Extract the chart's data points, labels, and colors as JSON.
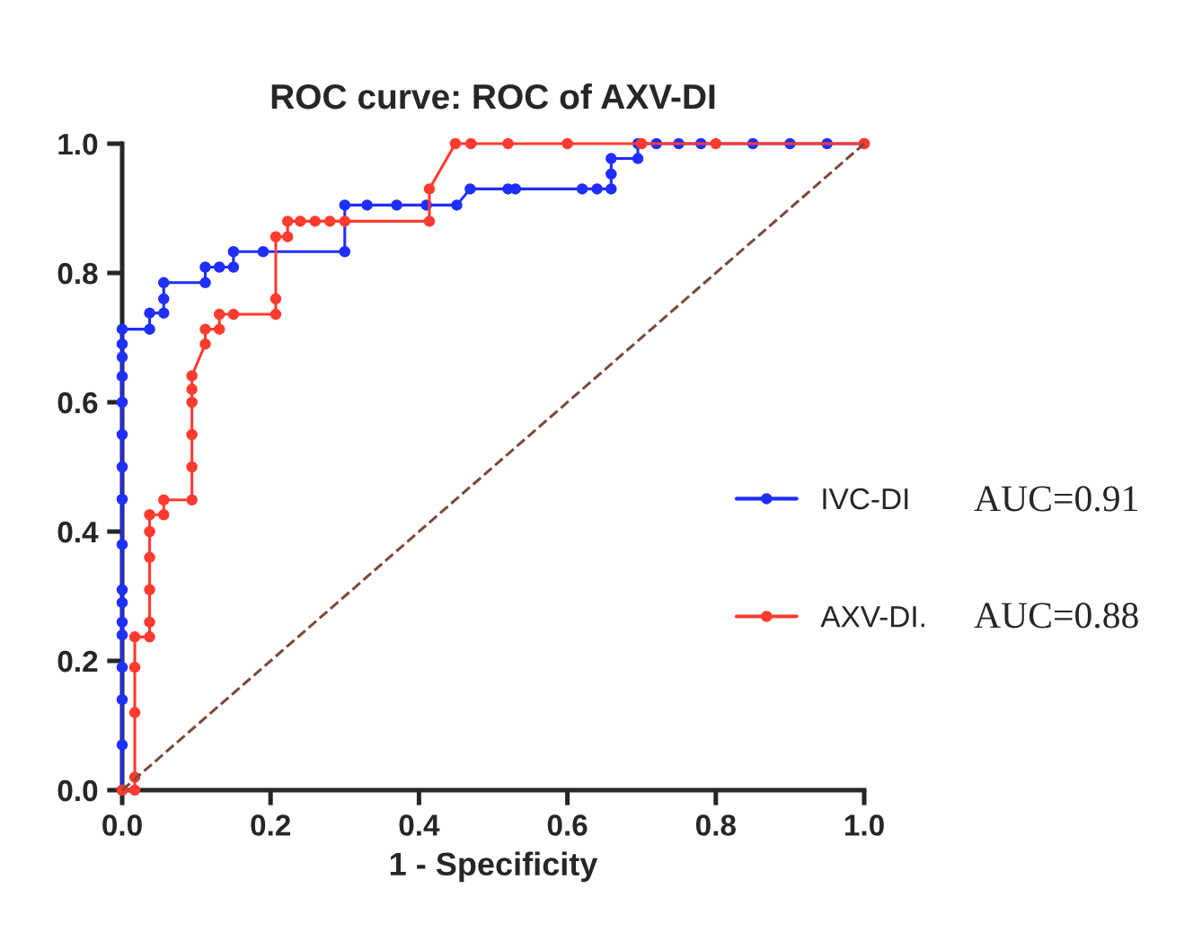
{
  "chart_data": {
    "type": "line",
    "title": "ROC curve: ROC of AXV-DI",
    "xlabel": "1 - Specificity",
    "xlim": [
      0,
      1.0
    ],
    "ylim": [
      0,
      1.0
    ],
    "xticks": [
      "0.0",
      0.2,
      0.4,
      0.6,
      0.8,
      "1.0"
    ],
    "yticks": [
      "0.0",
      0.2,
      0.4,
      0.6,
      0.8,
      "1.0"
    ],
    "grid": false,
    "legend": "right",
    "marker": "circle",
    "series": [
      {
        "name": "IVC-DI",
        "color": "#1f2fff",
        "x": [
          0,
          0,
          0,
          0,
          0,
          0,
          0,
          0,
          0,
          0,
          0,
          0,
          0,
          0,
          0,
          0,
          0,
          0.037,
          0.037,
          0.056,
          0.056,
          0.056,
          0.112,
          0.112,
          0.131,
          0.15,
          0.15,
          0.19,
          0.3,
          0.3,
          0.33,
          0.37,
          0.41,
          0.451,
          0.469,
          0.52,
          0.53,
          0.62,
          0.64,
          0.659,
          0.659,
          0.659,
          0.695,
          0.695,
          0.72,
          0.75,
          0.78,
          0.85,
          0.9,
          0.95,
          1.0
        ],
        "values": [
          0,
          0.07,
          0.14,
          0.19,
          0.24,
          0.26,
          0.29,
          0.31,
          0.38,
          0.45,
          0.5,
          0.55,
          0.6,
          0.64,
          0.67,
          0.69,
          0.713,
          0.713,
          0.738,
          0.738,
          0.76,
          0.785,
          0.785,
          0.809,
          0.809,
          0.809,
          0.833,
          0.833,
          0.833,
          0.905,
          0.905,
          0.905,
          0.905,
          0.905,
          0.93,
          0.93,
          0.93,
          0.93,
          0.93,
          0.93,
          0.953,
          0.977,
          0.977,
          1.0,
          1.0,
          1.0,
          1.0,
          1.0,
          1.0,
          1.0,
          1.0
        ]
      },
      {
        "name": "AXV-DI.",
        "color": "#ff3b2f",
        "x": [
          0,
          0.017,
          0.017,
          0.017,
          0.017,
          0.017,
          0.037,
          0.037,
          0.037,
          0.037,
          0.037,
          0.037,
          0.056,
          0.056,
          0.094,
          0.094,
          0.094,
          0.094,
          0.094,
          0.094,
          0.112,
          0.112,
          0.131,
          0.131,
          0.15,
          0.207,
          0.207,
          0.207,
          0.223,
          0.223,
          0.24,
          0.26,
          0.28,
          0.3,
          0.414,
          0.414,
          0.449,
          0.47,
          0.52,
          0.6,
          0.7,
          0.8,
          1.0
        ],
        "values": [
          0,
          0,
          0.02,
          0.12,
          0.19,
          0.237,
          0.237,
          0.26,
          0.31,
          0.36,
          0.4,
          0.426,
          0.426,
          0.449,
          0.449,
          0.5,
          0.55,
          0.6,
          0.62,
          0.641,
          0.69,
          0.713,
          0.713,
          0.736,
          0.736,
          0.736,
          0.76,
          0.856,
          0.856,
          0.88,
          0.88,
          0.88,
          0.88,
          0.88,
          0.88,
          0.93,
          1.0,
          1.0,
          1.0,
          1.0,
          1.0,
          1.0,
          1.0
        ]
      },
      {
        "color": "#7a4a3a",
        "x": [
          0,
          1.0
        ],
        "values": [
          0,
          1.0
        ],
        "marker": "none",
        "line_style": "dashed"
      }
    ],
    "annotations": [
      "AUC=0.91",
      "AUC=0.88"
    ]
  }
}
